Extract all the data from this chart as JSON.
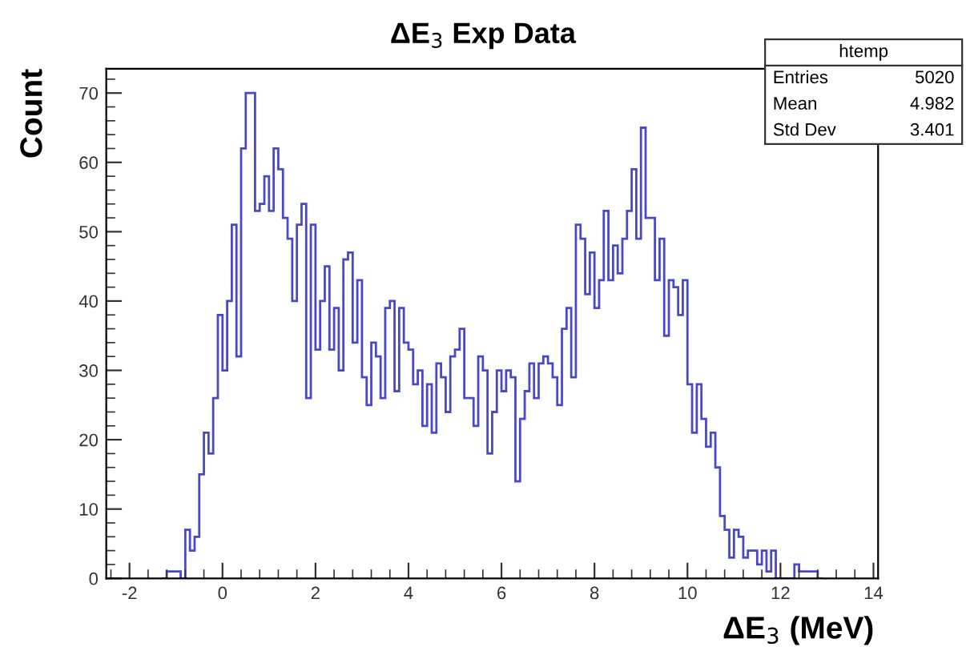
{
  "chart_data": {
    "type": "histogram",
    "title": "ΔE$_{3}$ Exp Data",
    "xlabel": "ΔE$_{3}$ (MeV)",
    "ylabel": "Count",
    "color": "#4848c8",
    "annotations": [
      "htemp",
      "Entries",
      "5020",
      "Mean",
      "4.982",
      "Std Dev",
      "3.401"
    ],
    "bins": [
      -1.3,
      -1.2,
      -1.1,
      -1.0,
      -0.9,
      -0.8,
      -0.7,
      -0.6,
      -0.5,
      -0.4,
      -0.3,
      -0.2,
      -0.1,
      0.0,
      0.1,
      0.2,
      0.3,
      0.4,
      0.5,
      0.6,
      0.7,
      0.8,
      0.9,
      1.0,
      1.1,
      1.2,
      1.3,
      1.4,
      1.5,
      1.6,
      1.7,
      1.8,
      1.9,
      2.0,
      2.1,
      2.2,
      2.3,
      2.4,
      2.5,
      2.6,
      2.7,
      2.8,
      2.9,
      3.0,
      3.1,
      3.2,
      3.3,
      3.4,
      3.5,
      3.6,
      3.7,
      3.8,
      3.9,
      4.0,
      4.1,
      4.2,
      4.3,
      4.4,
      4.5,
      4.6,
      4.7,
      4.8,
      4.9,
      5.0,
      5.1,
      5.2,
      5.3,
      5.4,
      5.5,
      5.6,
      5.7,
      5.8,
      5.9,
      6.0,
      6.1,
      6.2,
      6.3,
      6.4,
      6.5,
      6.6,
      6.7,
      6.8,
      6.9,
      7.0,
      7.1,
      7.2,
      7.3,
      7.4,
      7.5,
      7.6,
      7.7,
      7.8,
      7.9,
      8.0,
      8.1,
      8.2,
      8.3,
      8.4,
      8.5,
      8.6,
      8.7,
      8.8,
      8.9,
      9.0,
      9.1,
      9.2,
      9.3,
      9.4,
      9.5,
      9.6,
      9.7,
      9.8,
      9.9,
      10.0,
      10.1,
      10.2,
      10.3,
      10.4,
      10.5,
      10.6,
      10.7,
      10.8,
      10.9,
      11.0,
      11.1,
      11.2,
      11.3,
      11.4,
      11.5,
      11.6,
      11.7,
      11.8,
      11.9,
      12.0,
      12.1,
      12.2,
      12.3,
      12.4,
      12.5,
      12.6,
      12.7,
      12.8,
      12.9
    ],
    "values": [
      0,
      1,
      1,
      1,
      0,
      7,
      4,
      6,
      15,
      21,
      18,
      26,
      38,
      30,
      40,
      51,
      32,
      62,
      70,
      70,
      53,
      54,
      58,
      53,
      62,
      59,
      52,
      49,
      40,
      51,
      54,
      26,
      51,
      33,
      40,
      45,
      33,
      39,
      30,
      46,
      47,
      34,
      43,
      29,
      25,
      34,
      32,
      26,
      39,
      40,
      27,
      39,
      34,
      33,
      28,
      30,
      22,
      28,
      21,
      31,
      29,
      24,
      32,
      33,
      36,
      26,
      26,
      22,
      32,
      30,
      18,
      24,
      30,
      27,
      30,
      29,
      14,
      23,
      27,
      31,
      26,
      31,
      32,
      31,
      29,
      25,
      36,
      39,
      29,
      51,
      49,
      41,
      47,
      39,
      43,
      53,
      43,
      48,
      44,
      49,
      53,
      59,
      49,
      65,
      52,
      52,
      43,
      49,
      35,
      43,
      42,
      38,
      43,
      28,
      21,
      28,
      23,
      19,
      21,
      16,
      9,
      7,
      3,
      7,
      6,
      3,
      4,
      4,
      2,
      4,
      1,
      4,
      0,
      0,
      0,
      0,
      2,
      1,
      1,
      1,
      1,
      0
    ],
    "xlim": [
      -2.5,
      14.1
    ],
    "ylim": [
      0,
      73.5
    ],
    "xticks": [
      -2,
      0,
      2,
      4,
      6,
      8,
      10,
      12,
      14
    ],
    "yticks": [
      0,
      10,
      20,
      30,
      40,
      50,
      60,
      70
    ],
    "grid": false,
    "legend": false
  }
}
